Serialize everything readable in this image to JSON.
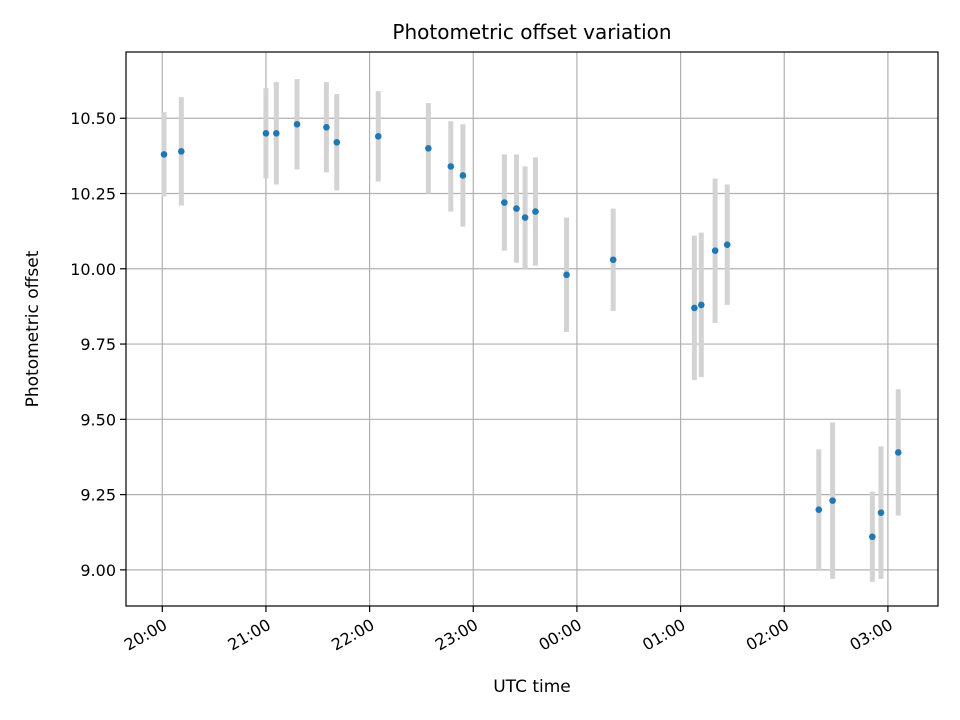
{
  "chart_data": {
    "type": "scatter",
    "title": "Photometric offset variation",
    "xlabel": "UTC time",
    "ylabel": "Photometric offset",
    "x_axis_kind": "time",
    "xlim": [
      "19:39",
      "03:29"
    ],
    "ylim": [
      8.88,
      10.72
    ],
    "x_ticks": [
      "20:00",
      "21:00",
      "22:00",
      "23:00",
      "00:00",
      "01:00",
      "02:00",
      "03:00"
    ],
    "y_ticks": [
      9.0,
      9.25,
      9.5,
      9.75,
      10.0,
      10.25,
      10.5
    ],
    "y_tick_labels": [
      "9.00",
      "9.25",
      "9.50",
      "9.75",
      "10.00",
      "10.25",
      "10.50"
    ],
    "grid": true,
    "colors": {
      "point": "#1f77b4",
      "errorbar": "#d3d3d3",
      "grid": "#b0b0b0"
    },
    "points": [
      {
        "time": "20:01",
        "y": 10.38,
        "err": 0.14
      },
      {
        "time": "20:11",
        "y": 10.39,
        "err": 0.18
      },
      {
        "time": "21:00",
        "y": 10.45,
        "err": 0.15
      },
      {
        "time": "21:06",
        "y": 10.45,
        "err": 0.17
      },
      {
        "time": "21:18",
        "y": 10.48,
        "err": 0.15
      },
      {
        "time": "21:35",
        "y": 10.47,
        "err": 0.15
      },
      {
        "time": "21:41",
        "y": 10.42,
        "err": 0.16
      },
      {
        "time": "22:05",
        "y": 10.44,
        "err": 0.15
      },
      {
        "time": "22:34",
        "y": 10.4,
        "err": 0.15
      },
      {
        "time": "22:47",
        "y": 10.34,
        "err": 0.15
      },
      {
        "time": "22:54",
        "y": 10.31,
        "err": 0.17
      },
      {
        "time": "23:18",
        "y": 10.22,
        "err": 0.16
      },
      {
        "time": "23:25",
        "y": 10.2,
        "err": 0.18
      },
      {
        "time": "23:30",
        "y": 10.17,
        "err": 0.17
      },
      {
        "time": "23:36",
        "y": 10.19,
        "err": 0.18
      },
      {
        "time": "23:54",
        "y": 9.98,
        "err": 0.19
      },
      {
        "time": "00:21",
        "y": 10.03,
        "err": 0.17
      },
      {
        "time": "01:08",
        "y": 9.87,
        "err": 0.24
      },
      {
        "time": "01:12",
        "y": 9.88,
        "err": 0.24
      },
      {
        "time": "01:20",
        "y": 10.06,
        "err": 0.24
      },
      {
        "time": "01:27",
        "y": 10.08,
        "err": 0.2
      },
      {
        "time": "02:20",
        "y": 9.2,
        "err": 0.2
      },
      {
        "time": "02:28",
        "y": 9.23,
        "err": 0.26
      },
      {
        "time": "02:51",
        "y": 9.11,
        "err": 0.15
      },
      {
        "time": "02:56",
        "y": 9.19,
        "err": 0.22
      },
      {
        "time": "03:06",
        "y": 9.39,
        "err": 0.21
      }
    ]
  }
}
